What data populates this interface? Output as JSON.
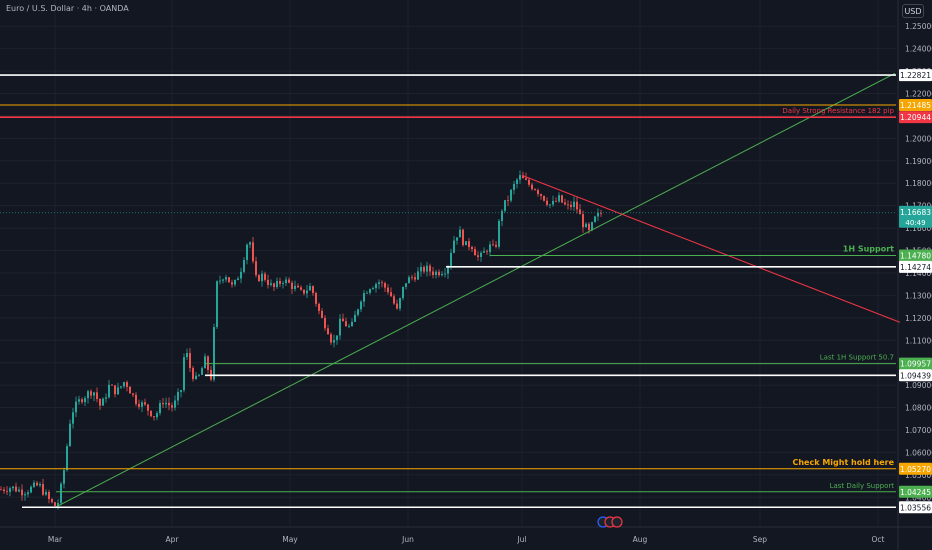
{
  "header": {
    "title": "Euro / U.S. Dollar · 4h · OANDA",
    "currency": "USD",
    "countdown": "40:49"
  },
  "colors": {
    "background": "#131722",
    "up": "#26a69a",
    "down": "#ef5350",
    "white_line": "#ffffff",
    "orange_line": "#f7a600",
    "red_line": "#f23645",
    "green_line": "#4caf50",
    "trend_green": "#4caf50",
    "trend_red": "#f23645",
    "axis_text": "#b2b5be"
  },
  "chart_data": {
    "type": "candlestick",
    "title": "Euro / U.S. Dollar · 4h · OANDA",
    "x_ticks": [
      "Mar",
      "Apr",
      "May",
      "Jun",
      "Jul",
      "Aug",
      "Sep",
      "Oct"
    ],
    "y_ticks": [
      "1.25000",
      "1.24000",
      "1.23000",
      "1.22000",
      "1.21000",
      "1.20000",
      "1.19000",
      "1.18000",
      "1.17000",
      "1.16000",
      "1.15000",
      "1.14000",
      "1.13000",
      "1.12000",
      "1.11000",
      "1.10000",
      "1.09000",
      "1.08000",
      "1.07000",
      "1.06000",
      "1.05000",
      "1.04000"
    ],
    "ylim": [
      1.033,
      1.259
    ],
    "current_price": "1.16683",
    "price_path": [
      [
        0,
        1.0435
      ],
      [
        10,
        1.0445
      ],
      [
        22,
        1.0425
      ],
      [
        38,
        1.0455
      ],
      [
        50,
        1.0375
      ],
      [
        56,
        1.0357
      ],
      [
        62,
        1.0485
      ],
      [
        70,
        1.0775
      ],
      [
        80,
        1.084
      ],
      [
        92,
        1.088
      ],
      [
        100,
        1.08
      ],
      [
        108,
        1.0895
      ],
      [
        116,
        1.087
      ],
      [
        124,
        1.092
      ],
      [
        134,
        1.0835
      ],
      [
        144,
        1.0805
      ],
      [
        154,
        1.076
      ],
      [
        162,
        1.083
      ],
      [
        172,
        1.08
      ],
      [
        180,
        1.088
      ],
      [
        184,
        1.107
      ],
      [
        190,
        1.096
      ],
      [
        196,
        1.0915
      ],
      [
        204,
        1.101
      ],
      [
        210,
        1.0935
      ],
      [
        216,
        1.135
      ],
      [
        224,
        1.14
      ],
      [
        232,
        1.133
      ],
      [
        240,
        1.142
      ],
      [
        248,
        1.157
      ],
      [
        254,
        1.137
      ],
      [
        262,
        1.139
      ],
      [
        272,
        1.133
      ],
      [
        282,
        1.137
      ],
      [
        292,
        1.134
      ],
      [
        300,
        1.131
      ],
      [
        310,
        1.134
      ],
      [
        320,
        1.12
      ],
      [
        326,
        1.116
      ],
      [
        332,
        1.108
      ],
      [
        340,
        1.119
      ],
      [
        350,
        1.115
      ],
      [
        360,
        1.129
      ],
      [
        368,
        1.134
      ],
      [
        378,
        1.136
      ],
      [
        388,
        1.132
      ],
      [
        396,
        1.123
      ],
      [
        404,
        1.136
      ],
      [
        414,
        1.139
      ],
      [
        424,
        1.142
      ],
      [
        434,
        1.14
      ],
      [
        446,
        1.142
      ],
      [
        452,
        1.154
      ],
      [
        458,
        1.159
      ],
      [
        464,
        1.152
      ],
      [
        470,
        1.153
      ],
      [
        478,
        1.146
      ],
      [
        488,
        1.152
      ],
      [
        494,
        1.15
      ],
      [
        500,
        1.168
      ],
      [
        506,
        1.172
      ],
      [
        512,
        1.178
      ],
      [
        518,
        1.183
      ],
      [
        526,
        1.18
      ],
      [
        534,
        1.178
      ],
      [
        542,
        1.174
      ],
      [
        550,
        1.17
      ],
      [
        558,
        1.173
      ],
      [
        566,
        1.169
      ],
      [
        574,
        1.171
      ],
      [
        582,
        1.162
      ],
      [
        588,
        1.158
      ],
      [
        594,
        1.164
      ],
      [
        600,
        1.1668
      ]
    ],
    "horizontal_levels": [
      {
        "price": 1.22821,
        "label": "1.22821",
        "color_key": "white_line",
        "note": ""
      },
      {
        "price": 1.21485,
        "label": "1.21485",
        "color_key": "orange_line",
        "note": ""
      },
      {
        "price": 1.20944,
        "label": "1.20944",
        "color_key": "red_line",
        "note": "Daily Strong Resistance 182 pip"
      },
      {
        "price": 1.1478,
        "label": "1.14780",
        "color_key": "green_line",
        "note": "1H Support",
        "start_x": 490
      },
      {
        "price": 1.14274,
        "label": "1.14274",
        "color_key": "white_line",
        "note": "",
        "start_x": 446
      },
      {
        "price": 1.09957,
        "label": "1.09957",
        "color_key": "green_line",
        "note": "Last 1H Support 50.7",
        "start_x": 205
      },
      {
        "price": 1.09439,
        "label": "1.09439",
        "color_key": "white_line",
        "note": "",
        "start_x": 205
      },
      {
        "price": 1.0527,
        "label": "1.05270",
        "color_key": "orange_line",
        "note": "Check Might hold here"
      },
      {
        "price": 1.04245,
        "label": "1.04245",
        "color_key": "green_line",
        "note": "Last Daily Support",
        "start_x": 56
      },
      {
        "price": 1.03556,
        "label": "1.03556",
        "color_key": "white_line",
        "note": "",
        "start_x": 22
      }
    ],
    "trendlines": [
      {
        "name": "rising support",
        "color_key": "trend_green",
        "from": [
          56,
          1.0357
        ],
        "to": [
          895,
          1.229
        ]
      },
      {
        "name": "falling resistance",
        "color_key": "trend_red",
        "from": [
          522,
          1.1835
        ],
        "to": [
          900,
          1.118
        ]
      }
    ]
  }
}
